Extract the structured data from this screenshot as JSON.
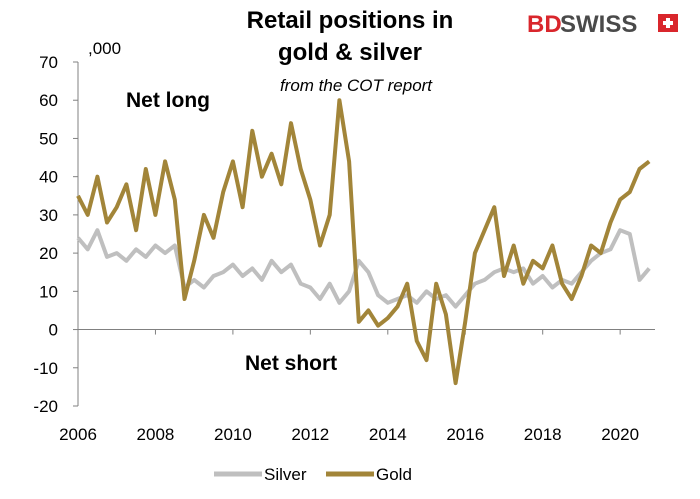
{
  "logo": {
    "part1": "BD",
    "part2": "SWISS",
    "accent": "#d9262c"
  },
  "chart_data": {
    "type": "line",
    "title_line1": "Retail positions in",
    "title_line2": "gold & silver",
    "subtitle": "from the COT report",
    "yunit": ",000",
    "ylim": [
      -20,
      70
    ],
    "yticks": [
      "70",
      "60",
      "50",
      "40",
      "30",
      "20",
      "10",
      "0",
      "-10",
      "-20"
    ],
    "xlim": [
      2006,
      2020.9
    ],
    "xticks": [
      "2006",
      "2008",
      "2010",
      "2012",
      "2014",
      "2016",
      "2018",
      "2020"
    ],
    "annotations": {
      "net_long": "Net long",
      "net_short": "Net short"
    },
    "legend": {
      "position": "bottom",
      "silver": "Silver",
      "gold": "Gold"
    },
    "series": [
      {
        "name": "Silver",
        "color": "#bfbfbf",
        "x": [
          2006.0,
          2006.25,
          2006.5,
          2006.75,
          2007.0,
          2007.25,
          2007.5,
          2007.75,
          2008.0,
          2008.25,
          2008.5,
          2008.75,
          2009.0,
          2009.25,
          2009.5,
          2009.75,
          2010.0,
          2010.25,
          2010.5,
          2010.75,
          2011.0,
          2011.25,
          2011.5,
          2011.75,
          2012.0,
          2012.25,
          2012.5,
          2012.75,
          2013.0,
          2013.25,
          2013.5,
          2013.75,
          2014.0,
          2014.25,
          2014.5,
          2014.75,
          2015.0,
          2015.25,
          2015.5,
          2015.75,
          2016.0,
          2016.25,
          2016.5,
          2016.75,
          2017.0,
          2017.25,
          2017.5,
          2017.75,
          2018.0,
          2018.25,
          2018.5,
          2018.75,
          2019.0,
          2019.25,
          2019.5,
          2019.75,
          2020.0,
          2020.25,
          2020.5,
          2020.75
        ],
        "values": [
          24,
          21,
          26,
          19,
          20,
          18,
          21,
          19,
          22,
          20,
          22,
          11,
          13,
          11,
          14,
          15,
          17,
          14,
          16,
          13,
          18,
          15,
          17,
          12,
          11,
          8,
          12,
          7,
          10,
          18,
          15,
          9,
          7,
          8,
          9,
          7,
          10,
          8,
          9,
          6,
          9,
          12,
          13,
          15,
          16,
          15,
          16,
          12,
          14,
          11,
          13,
          12,
          15,
          18,
          20,
          21,
          26,
          25,
          13,
          16
        ]
      },
      {
        "name": "Gold",
        "color": "#a28539",
        "x": [
          2006.0,
          2006.25,
          2006.5,
          2006.75,
          2007.0,
          2007.25,
          2007.5,
          2007.75,
          2008.0,
          2008.25,
          2008.5,
          2008.75,
          2009.0,
          2009.25,
          2009.5,
          2009.75,
          2010.0,
          2010.25,
          2010.5,
          2010.75,
          2011.0,
          2011.25,
          2011.5,
          2011.75,
          2012.0,
          2012.25,
          2012.5,
          2012.75,
          2013.0,
          2013.25,
          2013.5,
          2013.75,
          2014.0,
          2014.25,
          2014.5,
          2014.75,
          2015.0,
          2015.25,
          2015.5,
          2015.75,
          2016.0,
          2016.25,
          2016.5,
          2016.75,
          2017.0,
          2017.25,
          2017.5,
          2017.75,
          2018.0,
          2018.25,
          2018.5,
          2018.75,
          2019.0,
          2019.25,
          2019.5,
          2019.75,
          2020.0,
          2020.25,
          2020.5,
          2020.75
        ],
        "values": [
          35,
          30,
          40,
          28,
          32,
          38,
          26,
          42,
          30,
          44,
          34,
          8,
          18,
          30,
          24,
          36,
          44,
          32,
          52,
          40,
          46,
          38,
          54,
          42,
          34,
          22,
          30,
          60,
          44,
          2,
          5,
          1,
          3,
          6,
          12,
          -3,
          -8,
          12,
          4,
          -14,
          2,
          20,
          26,
          32,
          14,
          22,
          12,
          18,
          16,
          22,
          12,
          8,
          14,
          22,
          20,
          28,
          34,
          36,
          42,
          44
        ]
      }
    ]
  }
}
